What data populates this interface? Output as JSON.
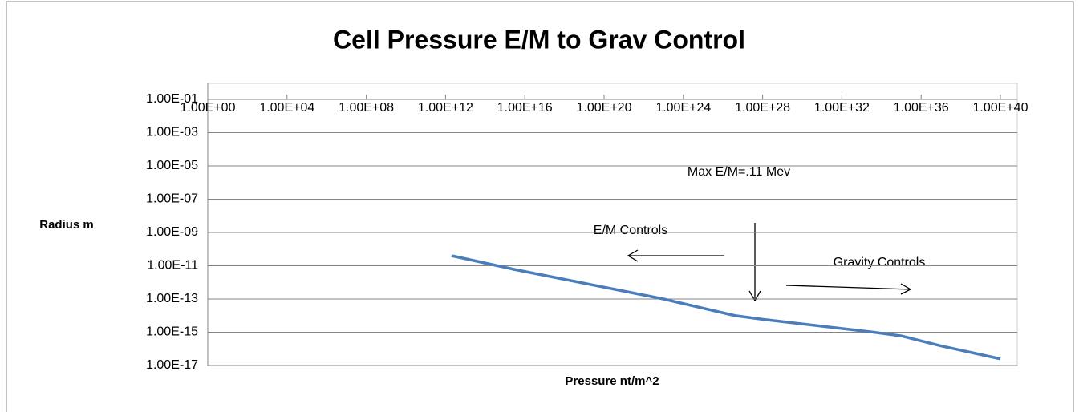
{
  "chart_data": {
    "type": "line",
    "title": "Cell Pressure E/M to Grav Control",
    "x_label": "Pressure nt/m^2",
    "y_label": "Radius m",
    "x_log": true,
    "y_log": true,
    "grid": true,
    "x": [
      2000000000000.0,
      3000000000000000.0,
      1e+23,
      4e+26,
      1e+28,
      4e+33,
      1e+35,
      1e+37,
      1e+40
    ],
    "series": [
      {
        "name": "Radius",
        "color": "#4a7ebb",
        "values": [
          4e-11,
          6e-12,
          1e-13,
          1e-14,
          6e-15,
          1e-15,
          6e-16,
          1.5e-16,
          2.5e-17
        ]
      }
    ],
    "xlim": [
      1,
      1e+40
    ],
    "ylim": [
      1e-17,
      0.1
    ],
    "xticks": [
      {
        "value": 1,
        "label": "1.00E+00"
      },
      {
        "value": 10000.0,
        "label": "1.00E+04"
      },
      {
        "value": 100000000.0,
        "label": "1.00E+08"
      },
      {
        "value": 1000000000000.0,
        "label": "1.00E+12"
      },
      {
        "value": 1e+16,
        "label": "1.00E+16"
      },
      {
        "value": 1e+20,
        "label": "1.00E+20"
      },
      {
        "value": 1e+24,
        "label": "1.00E+24"
      },
      {
        "value": 1e+28,
        "label": "1.00E+28"
      },
      {
        "value": 1e+32,
        "label": "1.00E+32"
      },
      {
        "value": 1e+36,
        "label": "1.00E+36"
      },
      {
        "value": 1e+40,
        "label": "1.00E+40"
      }
    ],
    "yticks": [
      {
        "value": 0.1,
        "label": "1.00E-01"
      },
      {
        "value": 0.001,
        "label": "1.00E-03"
      },
      {
        "value": 1e-05,
        "label": "1.00E-05"
      },
      {
        "value": 1e-07,
        "label": "1.00E-07"
      },
      {
        "value": 1e-09,
        "label": "1.00E-09"
      },
      {
        "value": 1e-11,
        "label": "1.00E-11"
      },
      {
        "value": 1e-13,
        "label": "1.00E-13"
      },
      {
        "value": 1e-15,
        "label": "1.00E-15"
      },
      {
        "value": 1e-17,
        "label": "1.00E-17"
      }
    ],
    "annotations": [
      "Max E/M=.11 Mev",
      "E/M Controls",
      "Gravity Controls"
    ]
  }
}
